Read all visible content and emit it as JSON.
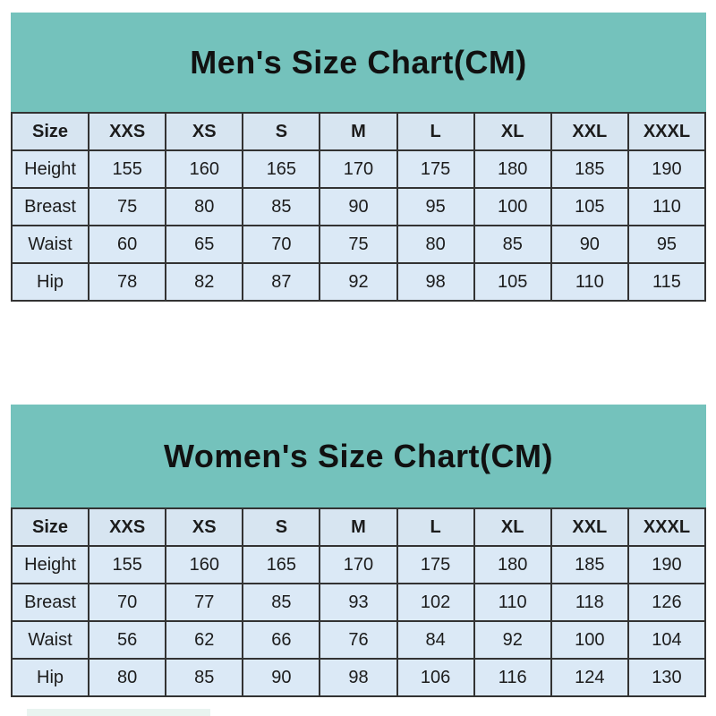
{
  "colors": {
    "band_teal": "#74c2bc",
    "cell_blue": "#dbe9f6",
    "header_cell_blue": "#d7e5f1",
    "grid_border": "#333333",
    "text": "#1c1c1c"
  },
  "chart_data": [
    {
      "type": "table",
      "title": "Men's Size Chart(CM)",
      "columns": [
        "Size",
        "XXS",
        "XS",
        "S",
        "M",
        "L",
        "XL",
        "XXL",
        "XXXL"
      ],
      "row_labels": [
        "Height",
        "Breast",
        "Waist",
        "Hip"
      ],
      "rows": [
        [
          155,
          160,
          165,
          170,
          175,
          180,
          185,
          190
        ],
        [
          75,
          80,
          85,
          90,
          95,
          100,
          105,
          110
        ],
        [
          60,
          65,
          70,
          75,
          80,
          85,
          90,
          95
        ],
        [
          78,
          82,
          87,
          92,
          98,
          105,
          110,
          115
        ]
      ]
    },
    {
      "type": "table",
      "title": "Women's Size Chart(CM)",
      "columns": [
        "Size",
        "XXS",
        "XS",
        "S",
        "M",
        "L",
        "XL",
        "XXL",
        "XXXL"
      ],
      "row_labels": [
        "Height",
        "Breast",
        "Waist",
        "Hip"
      ],
      "rows": [
        [
          155,
          160,
          165,
          170,
          175,
          180,
          185,
          190
        ],
        [
          70,
          77,
          85,
          93,
          102,
          110,
          118,
          126
        ],
        [
          56,
          62,
          66,
          76,
          84,
          92,
          100,
          104
        ],
        [
          80,
          85,
          90,
          98,
          106,
          116,
          124,
          130
        ]
      ]
    }
  ]
}
